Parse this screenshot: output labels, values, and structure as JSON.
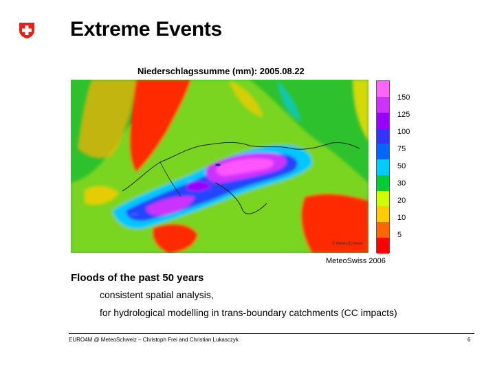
{
  "slide": {
    "title": "Extreme Events",
    "map_title": "Niederschlagssumme (mm): 2005.08.22",
    "map_credit": "© MeteoSchweiz",
    "source": "MeteoSwiss 2006",
    "heading": "Floods of the past 50 years",
    "bullets": [
      "consistent spatial analysis,",
      "for hydrological modelling in trans-boundary catchments (CC impacts)"
    ],
    "footer": "EURO4M @ MeteoSchweiz – Christoph Frei and Christian Lukasczyk",
    "page_number": "6"
  },
  "legend": {
    "labels": [
      "150",
      "125",
      "100",
      "75",
      "50",
      "30",
      "20",
      "10",
      "5"
    ],
    "colors": [
      "#ff66ff",
      "#cc33ff",
      "#9900ff",
      "#3333ff",
      "#0066ff",
      "#00ccff",
      "#00cc33",
      "#ccff00",
      "#ffcc00",
      "#ff6600",
      "#ff0000"
    ]
  },
  "colors": {
    "logo_red": "#e2231a",
    "low_precip": "#ff2200",
    "mid_precip": "#1fb81f",
    "high_precip": "#2244ff",
    "extreme_precip": "#cc33ff"
  }
}
